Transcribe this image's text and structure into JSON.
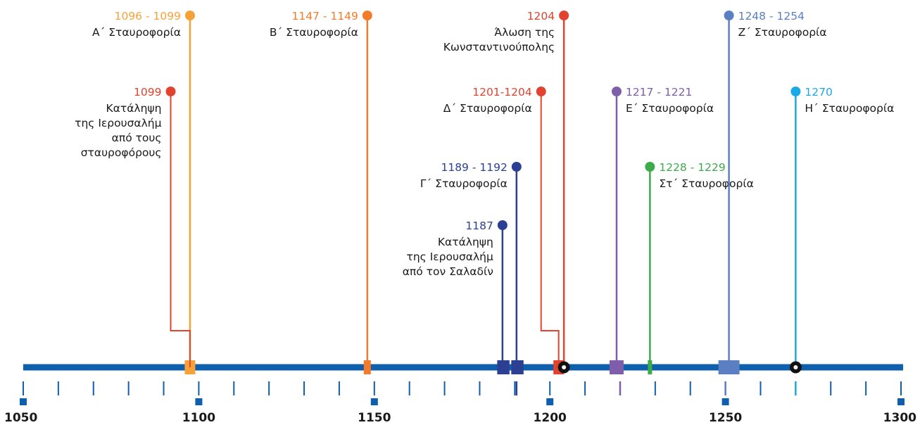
{
  "axis": {
    "ticks": [
      "1050",
      "1100",
      "1150",
      "1200",
      "1250",
      "1300"
    ],
    "colors": {
      "axis": "#0E5FAC",
      "text": "#1a1a1a"
    }
  },
  "events": [
    {
      "id": "cr1",
      "date": "1096 - 1099",
      "label": [
        "Α΄ Σταυροφορία"
      ],
      "color": "#F7A239"
    },
    {
      "id": "jer1",
      "date": "1099",
      "label": [
        "Κατάληψη",
        "της Ιερουσαλήμ",
        "από τους",
        "σταυροφόρους"
      ],
      "color": "#E2432E"
    },
    {
      "id": "cr2",
      "date": "1147 - 1149",
      "label": [
        "Β΄ Σταυροφορία"
      ],
      "color": "#F47B2A"
    },
    {
      "id": "jer2",
      "date": "1187",
      "label": [
        "Κατάληψη",
        "της Ιερουσαλήμ",
        "από τον Σαλαδίν"
      ],
      "color": "#2B3F93"
    },
    {
      "id": "cr3",
      "date": "1189 - 1192",
      "label": [
        "Γ΄ Σταυροφορία"
      ],
      "color": "#2B3F93"
    },
    {
      "id": "cr4",
      "date": "1201-1204",
      "label": [
        "Δ΄ Σταυροφορία"
      ],
      "color": "#E2432E"
    },
    {
      "id": "const",
      "date": "1204",
      "label": [
        "Άλωση της",
        "Κωνσταντινούπολης"
      ],
      "color": "#E2432E"
    },
    {
      "id": "cr5",
      "date": "1217 - 1221",
      "label": [
        "Ε΄ Σταυροφορία"
      ],
      "color": "#7E5DAA"
    },
    {
      "id": "cr6",
      "date": "1228 - 1229",
      "label": [
        "Στ΄ Σταυροφορία"
      ],
      "color": "#3DAA4B"
    },
    {
      "id": "cr7",
      "date": "1248 - 1254",
      "label": [
        "Ζ΄ Σταυροφορία"
      ],
      "color": "#5B7FC2"
    },
    {
      "id": "cr8",
      "date": "1270",
      "label": [
        "Η΄ Σταυροφορία"
      ],
      "color": "#1BA9E5"
    }
  ]
}
